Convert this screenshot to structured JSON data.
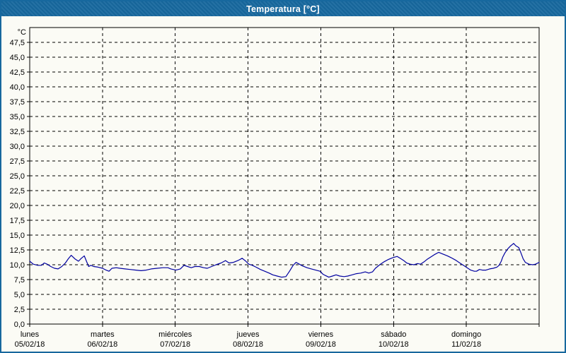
{
  "window": {
    "title": "Temperatura [°C]"
  },
  "colors": {
    "titlebar": "#17689e",
    "frame": "#17689e",
    "background": "#fbfbf5",
    "plot_border": "#000000",
    "gridline": "#000000",
    "series_line": "#0000a0",
    "title_text": "#ffffff",
    "label_text": "#000000"
  },
  "chart_data": {
    "type": "line",
    "title": "Temperatura [°C]",
    "y_unit_label": "°C",
    "ylim": [
      0,
      50
    ],
    "y_tick_step": 2.5,
    "y_tick_labels": [
      "0,0",
      "2,5",
      "5,0",
      "7,5",
      "10,0",
      "12,5",
      "15,0",
      "17,5",
      "20,0",
      "22,5",
      "25,0",
      "27,5",
      "30,0",
      "32,5",
      "35,0",
      "37,5",
      "40,0",
      "42,5",
      "45,0",
      "47,5"
    ],
    "x_range_days": [
      0,
      7
    ],
    "x_axis_days": [
      {
        "name": "lunes",
        "date": "05/02/18"
      },
      {
        "name": "martes",
        "date": "06/02/18"
      },
      {
        "name": "miércoles",
        "date": "07/02/18"
      },
      {
        "name": "jueves",
        "date": "08/02/18"
      },
      {
        "name": "viernes",
        "date": "09/02/18"
      },
      {
        "name": "sábado",
        "date": "10/02/18"
      },
      {
        "name": "domingo",
        "date": "11/02/18"
      }
    ],
    "grid": "dashed",
    "legend": "none",
    "series": [
      {
        "name": "Temperatura",
        "color": "#0000a0",
        "points": [
          [
            0.0,
            10.6
          ],
          [
            0.05,
            10.1
          ],
          [
            0.11,
            9.9
          ],
          [
            0.16,
            9.9
          ],
          [
            0.2,
            10.3
          ],
          [
            0.24,
            10.1
          ],
          [
            0.29,
            9.7
          ],
          [
            0.34,
            9.4
          ],
          [
            0.39,
            9.3
          ],
          [
            0.44,
            9.7
          ],
          [
            0.49,
            10.3
          ],
          [
            0.53,
            11.0
          ],
          [
            0.57,
            11.6
          ],
          [
            0.62,
            11.0
          ],
          [
            0.67,
            10.6
          ],
          [
            0.71,
            11.1
          ],
          [
            0.75,
            11.5
          ],
          [
            0.78,
            10.6
          ],
          [
            0.81,
            9.7
          ],
          [
            0.84,
            9.9
          ],
          [
            0.88,
            9.7
          ],
          [
            0.94,
            9.6
          ],
          [
            1.0,
            9.4
          ],
          [
            1.05,
            9.1
          ],
          [
            1.09,
            8.9
          ],
          [
            1.13,
            9.4
          ],
          [
            1.19,
            9.5
          ],
          [
            1.24,
            9.4
          ],
          [
            1.31,
            9.3
          ],
          [
            1.38,
            9.2
          ],
          [
            1.46,
            9.1
          ],
          [
            1.53,
            9.0
          ],
          [
            1.6,
            9.1
          ],
          [
            1.67,
            9.3
          ],
          [
            1.75,
            9.4
          ],
          [
            1.83,
            9.5
          ],
          [
            1.9,
            9.5
          ],
          [
            1.94,
            9.3
          ],
          [
            2.01,
            9.1
          ],
          [
            2.07,
            9.3
          ],
          [
            2.12,
            9.9
          ],
          [
            2.17,
            9.7
          ],
          [
            2.22,
            9.5
          ],
          [
            2.27,
            9.7
          ],
          [
            2.33,
            9.7
          ],
          [
            2.39,
            9.5
          ],
          [
            2.44,
            9.4
          ],
          [
            2.5,
            9.7
          ],
          [
            2.56,
            10.0
          ],
          [
            2.63,
            10.3
          ],
          [
            2.69,
            10.7
          ],
          [
            2.74,
            10.3
          ],
          [
            2.8,
            10.4
          ],
          [
            2.86,
            10.7
          ],
          [
            2.92,
            11.1
          ],
          [
            2.97,
            10.6
          ],
          [
            3.01,
            10.1
          ],
          [
            3.06,
            9.9
          ],
          [
            3.11,
            9.6
          ],
          [
            3.17,
            9.2
          ],
          [
            3.23,
            8.9
          ],
          [
            3.29,
            8.6
          ],
          [
            3.34,
            8.3
          ],
          [
            3.4,
            8.1
          ],
          [
            3.46,
            7.9
          ],
          [
            3.52,
            8.0
          ],
          [
            3.57,
            8.9
          ],
          [
            3.62,
            9.9
          ],
          [
            3.66,
            10.4
          ],
          [
            3.69,
            10.2
          ],
          [
            3.75,
            9.8
          ],
          [
            3.81,
            9.5
          ],
          [
            3.87,
            9.3
          ],
          [
            3.93,
            9.1
          ],
          [
            3.99,
            8.9
          ],
          [
            4.03,
            8.4
          ],
          [
            4.06,
            8.2
          ],
          [
            4.11,
            7.9
          ],
          [
            4.16,
            8.1
          ],
          [
            4.21,
            8.3
          ],
          [
            4.26,
            8.1
          ],
          [
            4.32,
            8.0
          ],
          [
            4.37,
            8.1
          ],
          [
            4.43,
            8.3
          ],
          [
            4.49,
            8.5
          ],
          [
            4.55,
            8.6
          ],
          [
            4.61,
            8.8
          ],
          [
            4.66,
            8.6
          ],
          [
            4.71,
            8.8
          ],
          [
            4.75,
            9.4
          ],
          [
            4.81,
            10.0
          ],
          [
            4.87,
            10.5
          ],
          [
            4.93,
            10.9
          ],
          [
            4.99,
            11.2
          ],
          [
            5.05,
            11.4
          ],
          [
            5.09,
            11.1
          ],
          [
            5.14,
            10.7
          ],
          [
            5.18,
            10.3
          ],
          [
            5.23,
            10.1
          ],
          [
            5.28,
            10.0
          ],
          [
            5.33,
            10.2
          ],
          [
            5.37,
            10.1
          ],
          [
            5.42,
            10.5
          ],
          [
            5.46,
            10.9
          ],
          [
            5.51,
            11.3
          ],
          [
            5.56,
            11.7
          ],
          [
            5.62,
            12.1
          ],
          [
            5.68,
            11.8
          ],
          [
            5.74,
            11.5
          ],
          [
            5.79,
            11.2
          ],
          [
            5.85,
            10.8
          ],
          [
            5.91,
            10.3
          ],
          [
            5.96,
            9.9
          ],
          [
            6.01,
            9.5
          ],
          [
            6.06,
            9.1
          ],
          [
            6.11,
            8.9
          ],
          [
            6.14,
            8.9
          ],
          [
            6.18,
            9.2
          ],
          [
            6.22,
            9.1
          ],
          [
            6.27,
            9.1
          ],
          [
            6.32,
            9.3
          ],
          [
            6.37,
            9.4
          ],
          [
            6.42,
            9.6
          ],
          [
            6.45,
            9.9
          ],
          [
            6.48,
            10.6
          ],
          [
            6.5,
            11.3
          ],
          [
            6.53,
            12.0
          ],
          [
            6.57,
            12.7
          ],
          [
            6.61,
            13.2
          ],
          [
            6.65,
            13.6
          ],
          [
            6.68,
            13.2
          ],
          [
            6.72,
            12.9
          ],
          [
            6.75,
            12.0
          ],
          [
            6.78,
            11.0
          ],
          [
            6.81,
            10.4
          ],
          [
            6.86,
            10.1
          ],
          [
            6.91,
            10.0
          ],
          [
            6.95,
            10.1
          ],
          [
            7.0,
            10.4
          ]
        ]
      }
    ]
  }
}
